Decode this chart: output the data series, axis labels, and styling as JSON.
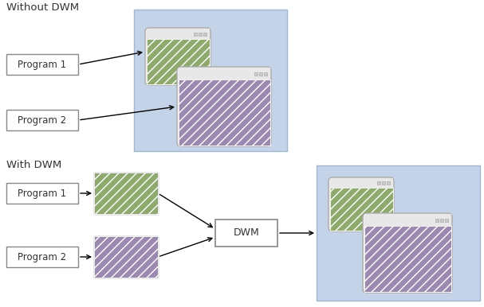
{
  "bg_color": "#ffffff",
  "blue_bg": "#c5d3e8",
  "blue_border": "#a0b8d0",
  "green_fill": "#8faa6e",
  "purple_fill": "#9b89b0",
  "text_color": "#333333",
  "prog_box_edge": "#888888",
  "dwm_box_edge": "#888888",
  "section1_title": "Without DWM",
  "section2_title": "With DWM",
  "prog1_label": "Program 1",
  "prog2_label": "Program 2",
  "dwm_label": "DWM",
  "win_titlebar_color": "#e8e8e8",
  "win_edge_color": "#aaaaaa",
  "btn_color": "#cccccc"
}
